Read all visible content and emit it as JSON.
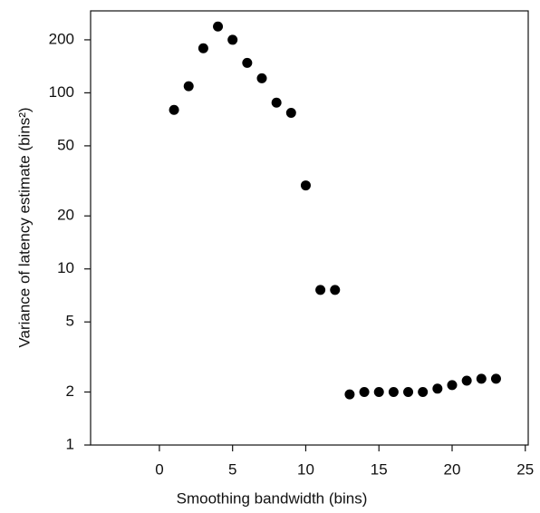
{
  "chart_data": {
    "type": "scatter",
    "x_label": "Smoothing bandwidth (bins)",
    "y_label": "Variance of latency estimate (bins²)",
    "x": [
      1,
      2,
      3,
      4,
      5,
      6,
      7,
      8,
      9,
      10,
      11,
      12,
      13,
      14,
      15,
      16,
      17,
      18,
      19,
      20,
      21,
      22,
      23
    ],
    "values": [
      80,
      109,
      179,
      238,
      200,
      148,
      121,
      88,
      77,
      29.8,
      7.6,
      7.6,
      1.94,
      2.0,
      2.0,
      2.0,
      2.0,
      2.0,
      2.09,
      2.19,
      2.32,
      2.38,
      2.38
    ],
    "color": "#000000",
    "xlim": [
      -4.7,
      25.2
    ],
    "xticks": [
      0,
      5,
      10,
      15,
      20,
      25
    ],
    "ylim": [
      1,
      292
    ],
    "yticks": [
      1,
      2,
      5,
      10,
      20,
      50,
      100,
      200
    ],
    "y_log": true
  }
}
